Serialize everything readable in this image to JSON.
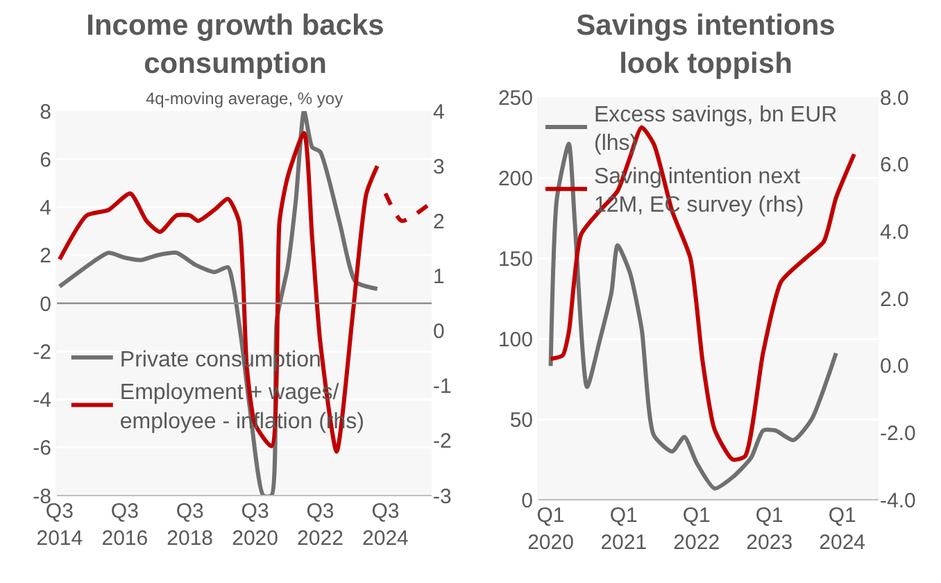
{
  "chart_data": [
    {
      "type": "line",
      "title": "Income growth backs\nconsumption",
      "subtitle": "4q-moving average, % yoy",
      "legend": "bottom left",
      "grid": "y",
      "marker": "none",
      "xlim": [
        "2014-06",
        "2025-12"
      ],
      "xticks": [
        {
          "value": "2014-07",
          "label": "Q3\n2014"
        },
        {
          "value": "2016-07",
          "label": "Q3\n2016"
        },
        {
          "value": "2018-07",
          "label": "Q3\n2018"
        },
        {
          "value": "2020-07",
          "label": "Q3\n2020"
        },
        {
          "value": "2022-07",
          "label": "Q3\n2022"
        },
        {
          "value": "2024-07",
          "label": "Q3\n2024"
        }
      ],
      "ylim": [
        -8,
        8
      ],
      "yticks": [
        -8,
        -6,
        -4,
        -2,
        0,
        2,
        4,
        6,
        8
      ],
      "y2lim": [
        -3,
        4
      ],
      "y2ticks": [
        -3,
        -2,
        -1,
        0,
        1,
        2,
        3,
        4
      ],
      "ref_lines": [
        {
          "axis": "y",
          "value": 0,
          "color": "#8c8c8c"
        }
      ],
      "series": [
        {
          "name": "Private consumption",
          "color": "#707070",
          "line_style": "solid",
          "x": [
            "2014-07",
            "2015-07",
            "2016-01",
            "2016-07",
            "2017-01",
            "2017-07",
            "2018-02",
            "2018-09",
            "2019-04",
            "2019-09",
            "2019-11",
            "2020-02",
            "2020-05",
            "2020-10",
            "2021-01",
            "2021-03",
            "2021-07",
            "2021-10",
            "2022-01",
            "2022-04",
            "2022-07",
            "2023-02",
            "2023-08",
            "2024-04"
          ],
          "values": [
            0.7,
            1.7,
            2.1,
            1.9,
            1.8,
            2.0,
            2.1,
            1.6,
            1.3,
            1.5,
            0.7,
            -1.6,
            -4.3,
            -8,
            -8,
            -0.7,
            1.5,
            4.3,
            8,
            6.5,
            6.3,
            3.4,
            0.9,
            0.6
          ]
        },
        {
          "name": "Employment + wages/\nemployee - inflation (rhs)",
          "color": "#c00000",
          "line_style": "solid",
          "axis": "y2",
          "x": [
            "2014-07",
            "2015-05",
            "2016-01",
            "2016-09",
            "2017-03",
            "2017-08",
            "2018-02",
            "2018-07",
            "2018-10",
            "2019-04",
            "2019-09",
            "2020-01",
            "2020-04",
            "2020-07",
            "2021-01",
            "2021-04",
            "2021-07",
            "2022-01",
            "2022-04",
            "2022-07",
            "2023-01",
            "2023-07",
            "2023-12",
            "2024-04"
          ],
          "values": [
            1.3,
            2.1,
            2.2,
            2.5,
            2.0,
            1.8,
            2.1,
            2.1,
            2.0,
            2.2,
            2.4,
            2.0,
            -0.7,
            -1.7,
            -2.1,
            2.0,
            2.8,
            3.6,
            1.7,
            -0.2,
            -2.2,
            0.3,
            2.5,
            3.0
          ]
        },
        {
          "color": "#c00000",
          "line_style": "dashed",
          "axis": "y2",
          "x": [
            "2024-07",
            "2025-01",
            "2025-11"
          ],
          "values": [
            2.5,
            2.0,
            2.3
          ]
        }
      ]
    },
    {
      "type": "line",
      "title": "Savings intentions\nlook toppish",
      "legend": "top left",
      "grid": "y",
      "marker": "none",
      "xlim": [
        "2019-11",
        "2024-07"
      ],
      "xticks": [
        {
          "value": "2020-01",
          "label": "Q1\n2020"
        },
        {
          "value": "2021-01",
          "label": "Q1\n2021"
        },
        {
          "value": "2022-01",
          "label": "Q1\n2022"
        },
        {
          "value": "2023-01",
          "label": "Q1\n2023"
        },
        {
          "value": "2024-01",
          "label": "Q1\n2024"
        }
      ],
      "ylim": [
        0,
        250
      ],
      "yticks": [
        0,
        50,
        100,
        150,
        200,
        250
      ],
      "y2lim": [
        -4,
        8
      ],
      "y2ticks": [
        {
          "value": -4,
          "label": "-4.0"
        },
        {
          "value": -2,
          "label": "-2.0"
        },
        {
          "value": 0,
          "label": "0.0"
        },
        {
          "value": 2,
          "label": "2.0"
        },
        {
          "value": 4,
          "label": "4.0"
        },
        {
          "value": 6,
          "label": "6.0"
        },
        {
          "value": 8,
          "label": "8.0"
        }
      ],
      "series": [
        {
          "name": "Excess savings, bn EUR\n(lhs)",
          "color": "#707070",
          "line_style": "solid",
          "x": [
            "2020-01",
            "2020-02",
            "2020-04",
            "2020-05",
            "2020-07",
            "2020-09",
            "2020-11",
            "2020-12",
            "2021-02",
            "2021-04",
            "2021-06",
            "2021-09",
            "2021-11",
            "2022-01",
            "2022-04",
            "2022-07",
            "2022-10",
            "2022-12",
            "2023-02",
            "2023-05",
            "2023-08",
            "2023-12"
          ],
          "values": [
            83,
            187,
            221,
            172,
            70,
            98,
            129,
            158,
            141,
            106,
            40,
            30,
            39,
            23,
            7,
            14,
            26,
            43,
            43,
            37,
            50,
            91
          ]
        },
        {
          "name": "Saving intention next\n12M, EC survey (rhs)",
          "color": "#c00000",
          "line_style": "solid",
          "axis": "y2",
          "x": [
            "2020-01",
            "2020-03",
            "2020-04",
            "2020-06",
            "2020-09",
            "2020-12",
            "2021-02",
            "2021-04",
            "2021-06",
            "2021-09",
            "2021-12",
            "2022-02",
            "2022-04",
            "2022-07",
            "2022-09",
            "2022-12",
            "2023-03",
            "2023-07",
            "2023-10",
            "2023-12",
            "2024-03"
          ],
          "values": [
            0.2,
            0.3,
            1.0,
            3.9,
            4.6,
            5.2,
            6.2,
            7.1,
            6.6,
            4.6,
            3.2,
            0.1,
            -1.9,
            -2.8,
            -2.7,
            0.4,
            2.5,
            3.2,
            3.7,
            5.0,
            6.3
          ]
        }
      ]
    }
  ]
}
